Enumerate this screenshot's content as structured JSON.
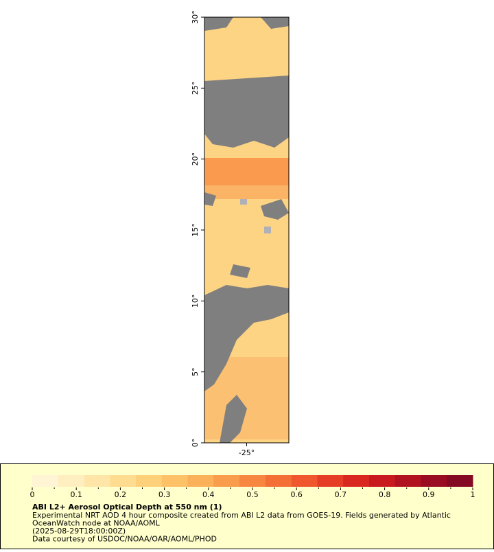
{
  "map": {
    "xlim": [
      -28,
      -22
    ],
    "ylim": [
      0,
      30
    ],
    "xticks": [
      {
        "value": -25,
        "label": "-25°"
      }
    ],
    "yticks": [
      {
        "value": 0,
        "label": "0°"
      },
      {
        "value": 5,
        "label": "5°"
      },
      {
        "value": 10,
        "label": "10°"
      },
      {
        "value": 15,
        "label": "15°"
      },
      {
        "value": 20,
        "label": "20°"
      },
      {
        "value": 25,
        "label": "25°"
      },
      {
        "value": 30,
        "label": "30°"
      }
    ]
  },
  "colorbar": {
    "lim": [
      0,
      1
    ],
    "ticks": [
      0,
      0.1,
      0.2,
      0.3,
      0.4,
      0.5,
      0.6,
      0.7,
      0.8,
      0.9,
      1
    ],
    "colors": [
      "#fff4d4",
      "#ffefc0",
      "#ffe6a8",
      "#ffdc90",
      "#ffd07a",
      "#fdc168",
      "#fbb05a",
      "#f99c4c",
      "#f78640",
      "#f46f36",
      "#f0572e",
      "#e63e26",
      "#d92720",
      "#c81a1e",
      "#b1121f",
      "#990c22",
      "#840a23"
    ]
  },
  "legend": {
    "title": "ABI L2+ Aerosol Optical Depth at 550 nm (1)",
    "lines": [
      "Experimental NRT AOD 4 hour composite created from ABI L2 data from GOES-19. Fields generated by Atlantic",
      "OceanWatch node at NOAA/AOML",
      "(2025-08-29T18:00:00Z)",
      "Data courtesy of USDOC/NOAA/OAR/AOML/PHOD"
    ]
  }
}
